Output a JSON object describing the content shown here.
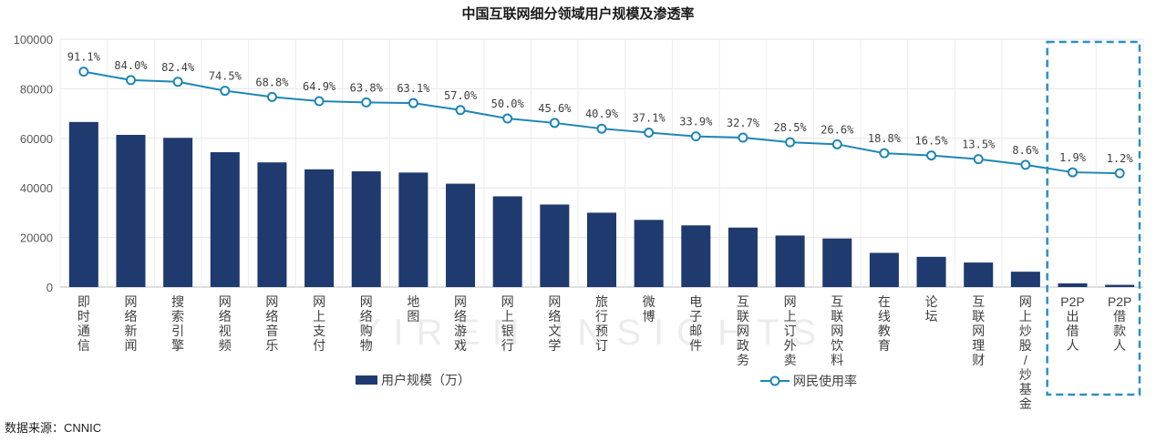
{
  "chart_data": {
    "type": "bar",
    "title": "中国互联网细分领域用户规模及渗透率",
    "source": "数据来源：CNNIC",
    "watermark": "YIREN INSIGHTS",
    "ylim": [
      0,
      100000
    ],
    "yticks": [
      "0",
      "20000",
      "40000",
      "60000",
      "80000",
      "100000"
    ],
    "grid": true,
    "legend_position": "bottom",
    "categories": [
      "即时通信",
      "网络新闻",
      "搜索引擎",
      "网络视频",
      "网络音乐",
      "网上支付",
      "网络购物",
      "地图",
      "网络游戏",
      "网上银行",
      "网络文学",
      "旅行预订",
      "微博",
      "电子邮件",
      "互联网政务",
      "网上订外卖",
      "互联网饮料",
      "在线教育",
      "论坛",
      "互联网理财",
      "网上炒股/炒基金",
      "P2P出借人",
      "P2P借款人"
    ],
    "series": [
      {
        "name": "用户规模（万）",
        "type": "bar",
        "color": "#1f3a6e",
        "values": [
          66600,
          61400,
          60200,
          54400,
          50300,
          47500,
          46700,
          46200,
          41700,
          36600,
          33300,
          30000,
          27100,
          24900,
          24000,
          20800,
          19600,
          13800,
          12200,
          9900,
          6200,
          1500,
          900
        ]
      },
      {
        "name": "网民使用率",
        "type": "line",
        "color": "#1f86b4",
        "line_values": [
          86900,
          83500,
          82800,
          79200,
          76700,
          75000,
          74500,
          74200,
          71400,
          68000,
          66200,
          63900,
          62300,
          60800,
          60300,
          58400,
          57600,
          54000,
          53100,
          51600,
          49300,
          46300,
          45900
        ],
        "labels": [
          "91.1%",
          "84.0%",
          "82.4%",
          "74.5%",
          "68.8%",
          "64.9%",
          "63.8%",
          "63.1%",
          "57.0%",
          "50.0%",
          "45.6%",
          "40.9%",
          "37.1%",
          "33.9%",
          "32.7%",
          "28.5%",
          "26.6%",
          "18.8%",
          "16.5%",
          "13.5%",
          "8.6%",
          "1.9%",
          "1.2%"
        ]
      }
    ],
    "highlight": {
      "from_index": 21,
      "to_index": 22,
      "color": "#2b8fc2",
      "style": "dashed"
    }
  }
}
